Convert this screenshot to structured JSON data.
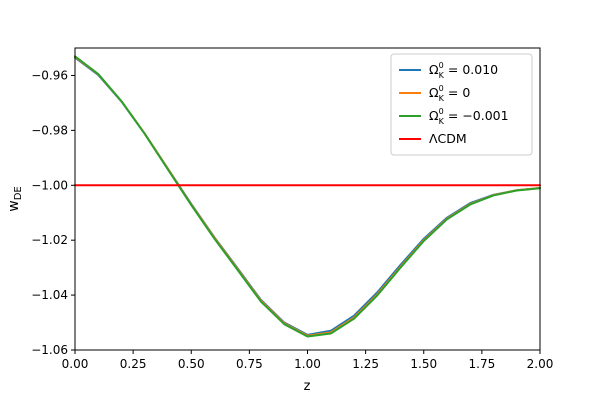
{
  "chart_data": {
    "type": "line",
    "title": "",
    "xlabel": "z",
    "ylabel_base": "w",
    "ylabel_sub": "DE",
    "xlim": [
      0.0,
      2.0
    ],
    "ylim": [
      -1.06,
      -0.95
    ],
    "xticks": [
      0.0,
      0.25,
      0.5,
      0.75,
      1.0,
      1.25,
      1.5,
      1.75,
      2.0
    ],
    "xtick_labels": [
      "0.00",
      "0.25",
      "0.50",
      "0.75",
      "1.00",
      "1.25",
      "1.50",
      "1.75",
      "2.00"
    ],
    "yticks": [
      -0.96,
      -0.98,
      -1.0,
      -1.02,
      -1.04,
      -1.06
    ],
    "ytick_labels": [
      "−0.96",
      "−0.98",
      "−1.00",
      "−1.02",
      "−1.04",
      "−1.06"
    ],
    "grid": false,
    "legend_placement": "top-right",
    "series": [
      {
        "color": "#1f77b4",
        "legend": {
          "base": "Ω",
          "sup": "0",
          "sub": "K",
          "rest": " = 0.010"
        },
        "x": [
          0.0,
          0.1,
          0.2,
          0.3,
          0.4,
          0.5,
          0.6,
          0.7,
          0.8,
          0.9,
          1.0,
          1.1,
          1.2,
          1.3,
          1.4,
          1.5,
          1.6,
          1.7,
          1.8,
          1.9,
          2.0
        ],
        "y": [
          -0.9535,
          -0.9598,
          -0.9695,
          -0.9812,
          -0.994,
          -1.0068,
          -1.019,
          -1.0303,
          -1.0418,
          -1.05,
          -1.0545,
          -1.053,
          -1.0475,
          -1.039,
          -1.029,
          -1.0195,
          -1.0118,
          -1.0065,
          -1.0035,
          -1.0018,
          -1.001
        ]
      },
      {
        "color": "#ff7f0e",
        "legend": {
          "base": "Ω",
          "sup": "0",
          "sub": "K",
          "rest": " = 0"
        },
        "x": [
          0.0,
          0.1,
          0.2,
          0.3,
          0.4,
          0.5,
          0.6,
          0.7,
          0.8,
          0.9,
          1.0,
          1.1,
          1.2,
          1.3,
          1.4,
          1.5,
          1.6,
          1.7,
          1.8,
          1.9,
          2.0
        ],
        "y": [
          -0.9532,
          -0.9596,
          -0.9694,
          -0.9812,
          -0.9941,
          -1.007,
          -1.0192,
          -1.0306,
          -1.0421,
          -1.0503,
          -1.0548,
          -1.0536,
          -1.0482,
          -1.0397,
          -1.0297,
          -1.02,
          -1.0122,
          -1.0068,
          -1.0036,
          -1.0018,
          -1.001
        ]
      },
      {
        "color": "#2ca02c",
        "legend": {
          "base": "Ω",
          "sup": "0",
          "sub": "K",
          "rest": " = −0.001"
        },
        "x": [
          0.0,
          0.1,
          0.2,
          0.3,
          0.4,
          0.5,
          0.6,
          0.7,
          0.8,
          0.9,
          1.0,
          1.1,
          1.2,
          1.3,
          1.4,
          1.5,
          1.6,
          1.7,
          1.8,
          1.9,
          2.0
        ],
        "y": [
          -0.953,
          -0.9595,
          -0.9694,
          -0.9813,
          -0.9943,
          -1.0072,
          -1.0195,
          -1.0309,
          -1.0424,
          -1.0506,
          -1.0551,
          -1.054,
          -1.0486,
          -1.0401,
          -1.03,
          -1.0203,
          -1.0124,
          -1.007,
          -1.0037,
          -1.0019,
          -1.0011
        ]
      },
      {
        "color": "#ff0000",
        "legend": {
          "base": "ΛCDM",
          "sup": "",
          "sub": "",
          "rest": ""
        },
        "x": [
          0.0,
          2.0
        ],
        "y": [
          -1.0,
          -1.0
        ]
      }
    ]
  }
}
